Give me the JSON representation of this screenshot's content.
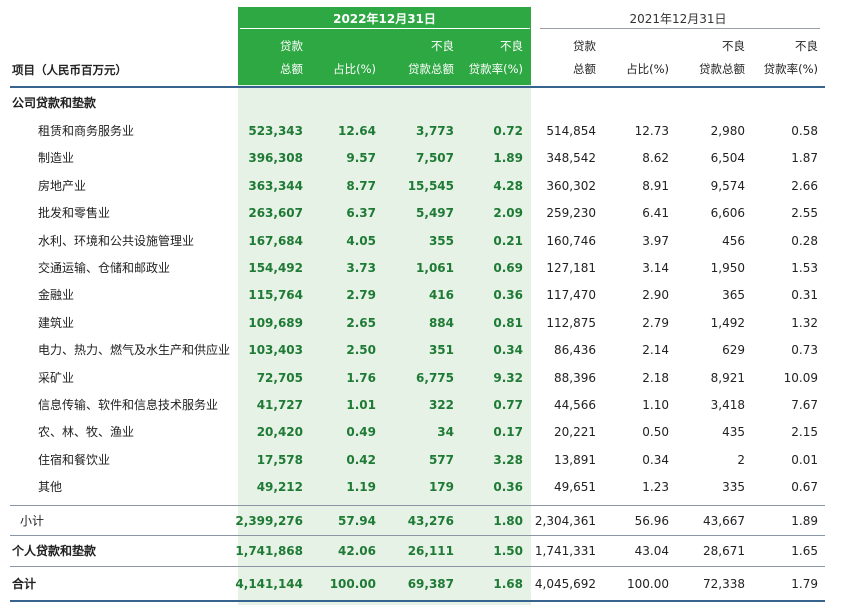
{
  "header": {
    "period_current": "2022年12月31日",
    "period_previous": "2021年12月31日",
    "item_label": "项目（人民币百万元）",
    "columns": [
      {
        "line1": "贷款",
        "line2": "总额"
      },
      {
        "line1": "",
        "line2": "占比(%)"
      },
      {
        "line1": "不良",
        "line2": "贷款总额"
      },
      {
        "line1": "不良",
        "line2": "贷款率(%)"
      }
    ]
  },
  "sections": {
    "corporate": "公司贷款和垫款",
    "subtotal": "小计",
    "personal": "个人贷款和垫款",
    "total": "合计"
  },
  "rows": [
    {
      "label": "租赁和商务服务业",
      "cur": [
        "523,343",
        "12.64",
        "3,773",
        "0.72"
      ],
      "prev": [
        "514,854",
        "12.73",
        "2,980",
        "0.58"
      ]
    },
    {
      "label": "制造业",
      "cur": [
        "396,308",
        "9.57",
        "7,507",
        "1.89"
      ],
      "prev": [
        "348,542",
        "8.62",
        "6,504",
        "1.87"
      ]
    },
    {
      "label": "房地产业",
      "cur": [
        "363,344",
        "8.77",
        "15,545",
        "4.28"
      ],
      "prev": [
        "360,302",
        "8.91",
        "9,574",
        "2.66"
      ]
    },
    {
      "label": "批发和零售业",
      "cur": [
        "263,607",
        "6.37",
        "5,497",
        "2.09"
      ],
      "prev": [
        "259,230",
        "6.41",
        "6,606",
        "2.55"
      ]
    },
    {
      "label": "水利、环境和公共设施管理业",
      "cur": [
        "167,684",
        "4.05",
        "355",
        "0.21"
      ],
      "prev": [
        "160,746",
        "3.97",
        "456",
        "0.28"
      ]
    },
    {
      "label": "交通运输、仓储和邮政业",
      "cur": [
        "154,492",
        "3.73",
        "1,061",
        "0.69"
      ],
      "prev": [
        "127,181",
        "3.14",
        "1,950",
        "1.53"
      ]
    },
    {
      "label": "金融业",
      "cur": [
        "115,764",
        "2.79",
        "416",
        "0.36"
      ],
      "prev": [
        "117,470",
        "2.90",
        "365",
        "0.31"
      ]
    },
    {
      "label": "建筑业",
      "cur": [
        "109,689",
        "2.65",
        "884",
        "0.81"
      ],
      "prev": [
        "112,875",
        "2.79",
        "1,492",
        "1.32"
      ]
    },
    {
      "label": "电力、热力、燃气及水生产和供应业",
      "cur": [
        "103,403",
        "2.50",
        "351",
        "0.34"
      ],
      "prev": [
        "86,436",
        "2.14",
        "629",
        "0.73"
      ]
    },
    {
      "label": "采矿业",
      "cur": [
        "72,705",
        "1.76",
        "6,775",
        "9.32"
      ],
      "prev": [
        "88,396",
        "2.18",
        "8,921",
        "10.09"
      ]
    },
    {
      "label": "信息传输、软件和信息技术服务业",
      "cur": [
        "41,727",
        "1.01",
        "322",
        "0.77"
      ],
      "prev": [
        "44,566",
        "1.10",
        "3,418",
        "7.67"
      ]
    },
    {
      "label": "农、林、牧、渔业",
      "cur": [
        "20,420",
        "0.49",
        "34",
        "0.17"
      ],
      "prev": [
        "20,221",
        "0.50",
        "435",
        "2.15"
      ]
    },
    {
      "label": "住宿和餐饮业",
      "cur": [
        "17,578",
        "0.42",
        "577",
        "3.28"
      ],
      "prev": [
        "13,891",
        "0.34",
        "2",
        "0.01"
      ]
    },
    {
      "label": "其他",
      "cur": [
        "49,212",
        "1.19",
        "179",
        "0.36"
      ],
      "prev": [
        "49,651",
        "1.23",
        "335",
        "0.67"
      ]
    }
  ],
  "subtotal": {
    "cur": [
      "2,399,276",
      "57.94",
      "43,276",
      "1.80"
    ],
    "prev": [
      "2,304,361",
      "56.96",
      "43,667",
      "1.89"
    ]
  },
  "personal": {
    "cur": [
      "1,741,868",
      "42.06",
      "26,111",
      "1.50"
    ],
    "prev": [
      "1,741,331",
      "43.04",
      "28,671",
      "1.65"
    ]
  },
  "total": {
    "cur": [
      "4,141,144",
      "100.00",
      "69,387",
      "1.68"
    ],
    "prev": [
      "4,045,692",
      "100.00",
      "72,338",
      "1.79"
    ]
  }
}
